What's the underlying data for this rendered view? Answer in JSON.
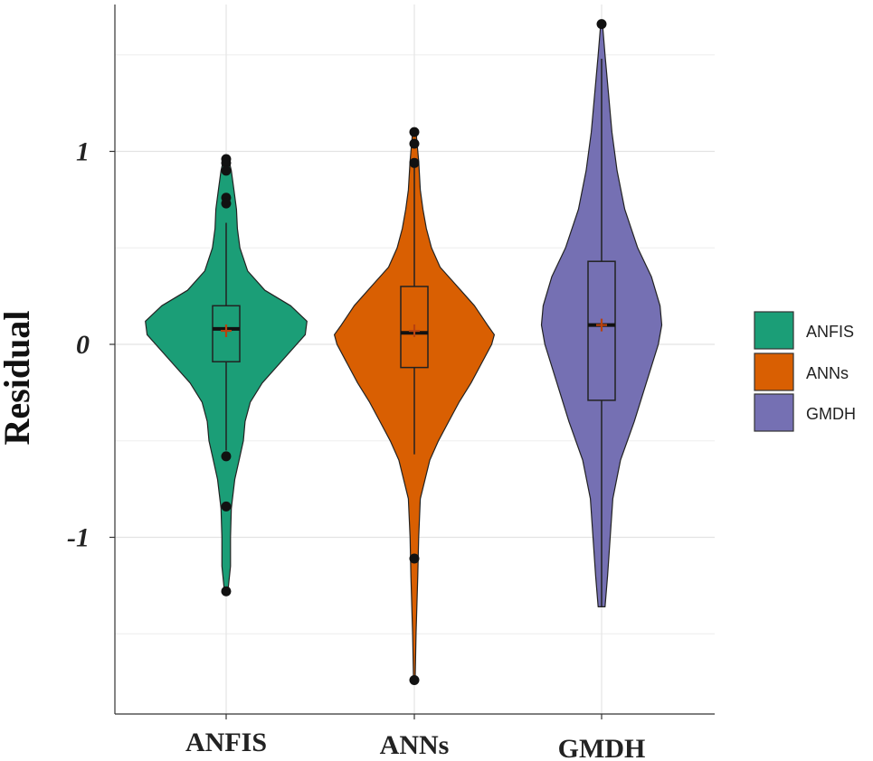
{
  "chart_data": {
    "type": "violin",
    "ylabel": "Residual",
    "xlabel": "",
    "ylim": [
      -1.9,
      1.75
    ],
    "y_ticks": [
      {
        "value": 1,
        "label": "1"
      },
      {
        "value": 0,
        "label": "0"
      },
      {
        "value": -1,
        "label": "-1"
      }
    ],
    "grid": true,
    "legend_position": "right",
    "categories": [
      "ANFIS",
      "ANNs",
      "GMDH"
    ],
    "series": [
      {
        "name": "ANFIS",
        "color": "#1b9e77",
        "box": {
          "q1": -0.09,
          "median": 0.08,
          "q3": 0.2,
          "whisker_low": -0.55,
          "whisker_high": 0.63
        },
        "mean": 0.07,
        "outliers": [
          0.96,
          0.94,
          0.9,
          0.76,
          0.73,
          -0.58,
          -0.84,
          -1.28
        ],
        "density": [
          [
            -1.28,
            0.02
          ],
          [
            -1.15,
            0.05
          ],
          [
            -1.0,
            0.05
          ],
          [
            -0.85,
            0.06
          ],
          [
            -0.7,
            0.1
          ],
          [
            -0.6,
            0.15
          ],
          [
            -0.5,
            0.2
          ],
          [
            -0.4,
            0.22
          ],
          [
            -0.3,
            0.28
          ],
          [
            -0.2,
            0.42
          ],
          [
            -0.1,
            0.62
          ],
          [
            0.0,
            0.82
          ],
          [
            0.05,
            0.92
          ],
          [
            0.12,
            0.94
          ],
          [
            0.2,
            0.75
          ],
          [
            0.28,
            0.45
          ],
          [
            0.38,
            0.25
          ],
          [
            0.5,
            0.16
          ],
          [
            0.6,
            0.13
          ],
          [
            0.7,
            0.12
          ],
          [
            0.8,
            0.09
          ],
          [
            0.9,
            0.06
          ],
          [
            0.96,
            0.03
          ]
        ]
      },
      {
        "name": "ANNs",
        "color": "#d95f02",
        "box": {
          "q1": -0.12,
          "median": 0.06,
          "q3": 0.3,
          "whisker_low": -0.57,
          "whisker_high": 0.93
        },
        "mean": 0.07,
        "outliers": [
          1.1,
          1.04,
          0.94,
          -1.11,
          -1.74
        ],
        "density": [
          [
            -1.74,
            0.01
          ],
          [
            -1.5,
            0.02
          ],
          [
            -1.2,
            0.04
          ],
          [
            -1.0,
            0.05
          ],
          [
            -0.8,
            0.07
          ],
          [
            -0.6,
            0.18
          ],
          [
            -0.5,
            0.28
          ],
          [
            -0.4,
            0.4
          ],
          [
            -0.3,
            0.52
          ],
          [
            -0.2,
            0.66
          ],
          [
            -0.1,
            0.78
          ],
          [
            0.0,
            0.9
          ],
          [
            0.05,
            0.93
          ],
          [
            0.1,
            0.85
          ],
          [
            0.2,
            0.7
          ],
          [
            0.3,
            0.5
          ],
          [
            0.4,
            0.3
          ],
          [
            0.5,
            0.2
          ],
          [
            0.6,
            0.14
          ],
          [
            0.7,
            0.1
          ],
          [
            0.8,
            0.07
          ],
          [
            0.95,
            0.05
          ],
          [
            1.1,
            0.02
          ]
        ]
      },
      {
        "name": "GMDH",
        "color": "#7570b3",
        "box": {
          "q1": -0.29,
          "median": 0.1,
          "q3": 0.43,
          "whisker_low": -1.36,
          "whisker_high": 1.48
        },
        "mean": 0.1,
        "outliers": [
          1.66
        ],
        "density": [
          [
            -1.36,
            0.04
          ],
          [
            -1.2,
            0.07
          ],
          [
            -1.0,
            0.1
          ],
          [
            -0.8,
            0.13
          ],
          [
            -0.6,
            0.22
          ],
          [
            -0.4,
            0.38
          ],
          [
            -0.2,
            0.52
          ],
          [
            0.0,
            0.66
          ],
          [
            0.1,
            0.7
          ],
          [
            0.2,
            0.68
          ],
          [
            0.35,
            0.58
          ],
          [
            0.5,
            0.42
          ],
          [
            0.7,
            0.27
          ],
          [
            0.9,
            0.18
          ],
          [
            1.1,
            0.12
          ],
          [
            1.3,
            0.08
          ],
          [
            1.5,
            0.04
          ],
          [
            1.66,
            0.01
          ]
        ]
      }
    ]
  }
}
